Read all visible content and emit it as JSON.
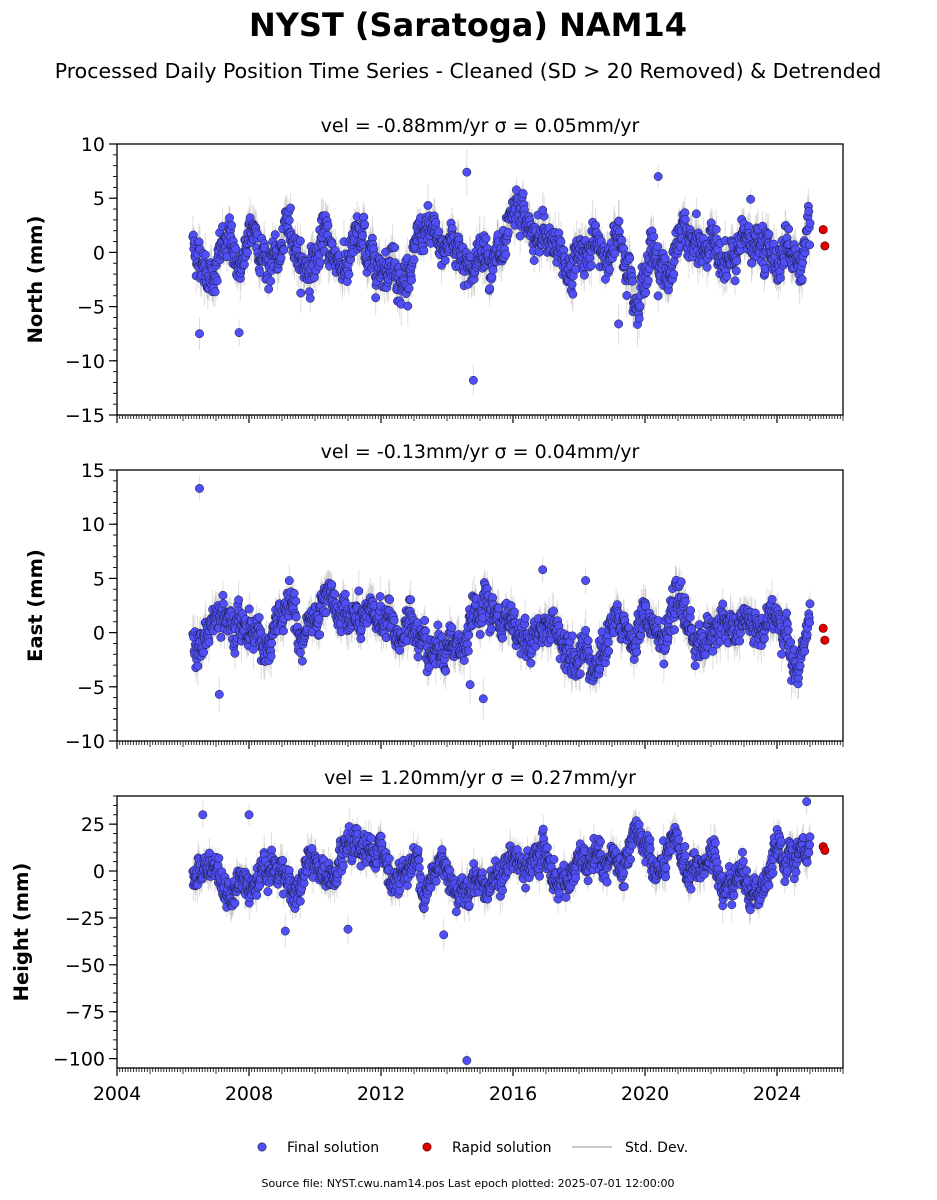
{
  "title": "NYST (Saratoga) NAM14",
  "subtitle": "Processed Daily Position Time Series - Cleaned (SD > 20 Removed) & Detrended",
  "footer": "Source file: NYST.cwu.nam14.pos  Last epoch plotted: 2025-07-01 12:00:00",
  "colors": {
    "final": "#4f4ff5",
    "final_edge": "#1a1a3a",
    "rapid": "#e00000",
    "stddev": "#b0b0b0"
  },
  "legend": [
    {
      "key": "final",
      "label": "Final solution",
      "marker": "circle",
      "color": "#4f4ff5"
    },
    {
      "key": "rapid",
      "label": "Rapid solution",
      "marker": "circle",
      "color": "#e00000"
    },
    {
      "key": "std",
      "label": "Std. Dev.",
      "marker": "line",
      "color": "#c8c8c8"
    }
  ],
  "chart_data": [
    {
      "type": "scatter",
      "title": "vel = -0.88mm/yr   σ = 0.05mm/yr",
      "ylabel": "North (mm)",
      "xlim": [
        2004.0,
        2026.0
      ],
      "ylim": [
        -15,
        10
      ],
      "yticks": [
        -15,
        -10,
        -5,
        0,
        5,
        10
      ],
      "xticks": [
        2004,
        2008,
        2012,
        2016,
        2020,
        2024
      ],
      "final_range": [
        2006.3,
        2025.0
      ],
      "final_spread": 1.4,
      "final_outliers": [
        [
          2006.5,
          -7.5
        ],
        [
          2007.7,
          -7.4
        ],
        [
          2014.6,
          7.4
        ],
        [
          2014.8,
          -11.8
        ],
        [
          2020.4,
          7.0
        ],
        [
          2023.2,
          4.9
        ],
        [
          2016.9,
          3.9
        ],
        [
          2019.2,
          -6.6
        ]
      ],
      "rapid": [
        [
          2025.4,
          2.1
        ],
        [
          2025.45,
          0.6
        ]
      ]
    },
    {
      "type": "scatter",
      "title": "vel = -0.13mm/yr   σ = 0.04mm/yr",
      "ylabel": "East (mm)",
      "xlim": [
        2004.0,
        2026.0
      ],
      "ylim": [
        -10,
        15
      ],
      "yticks": [
        -10,
        -5,
        0,
        5,
        10,
        15
      ],
      "xticks": [
        2004,
        2008,
        2012,
        2016,
        2020,
        2024
      ],
      "final_range": [
        2006.3,
        2025.0
      ],
      "final_spread": 1.3,
      "final_outliers": [
        [
          2006.5,
          13.3
        ],
        [
          2007.1,
          -5.7
        ],
        [
          2014.7,
          -4.8
        ],
        [
          2015.1,
          -6.1
        ],
        [
          2016.9,
          5.8
        ],
        [
          2018.2,
          4.8
        ]
      ],
      "rapid": [
        [
          2025.4,
          0.4
        ],
        [
          2025.45,
          -0.7
        ]
      ]
    },
    {
      "type": "scatter",
      "title": "vel = 1.20mm/yr   σ = 0.27mm/yr",
      "ylabel": "Height (mm)",
      "xlim": [
        2004.0,
        2026.0
      ],
      "ylim": [
        -105,
        40
      ],
      "yticks": [
        -100,
        -75,
        -50,
        -25,
        0,
        25
      ],
      "xticks": [
        2004,
        2008,
        2012,
        2016,
        2020,
        2024
      ],
      "xtick_labels": [
        "2004",
        "2008",
        "2012",
        "2016",
        "2020",
        "2024"
      ],
      "final_range": [
        2006.3,
        2025.0
      ],
      "final_spread": 6.5,
      "final_outliers": [
        [
          2014.6,
          -101
        ],
        [
          2006.6,
          30
        ],
        [
          2008.0,
          30
        ],
        [
          2024.9,
          37
        ],
        [
          2011.0,
          -31
        ],
        [
          2013.9,
          -34
        ],
        [
          2009.1,
          -32
        ]
      ],
      "rapid": [
        [
          2025.4,
          13
        ],
        [
          2025.45,
          11
        ]
      ]
    }
  ]
}
